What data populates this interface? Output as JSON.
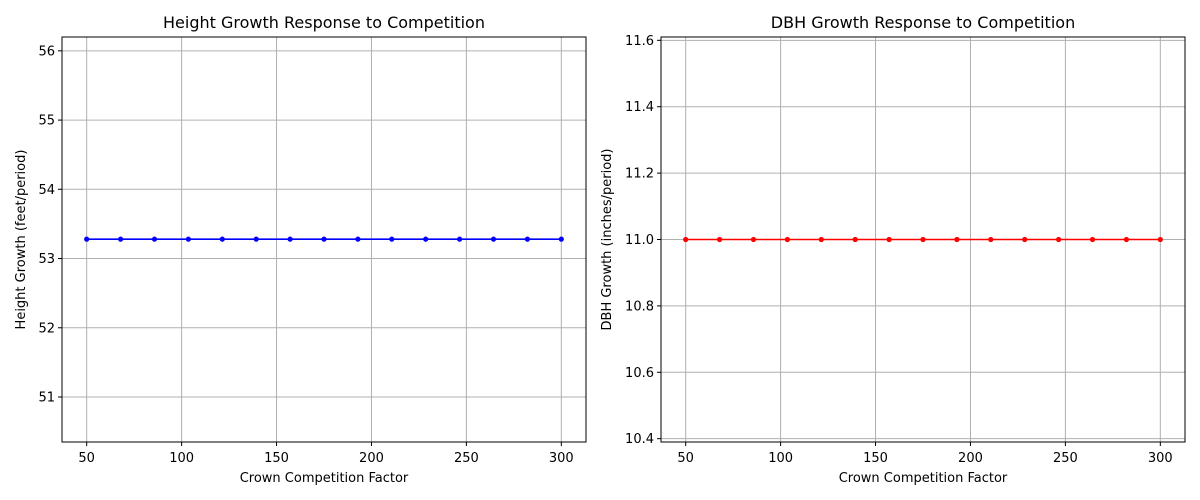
{
  "chart_data": [
    {
      "type": "line",
      "title": "Height Growth Response to Competition",
      "xlabel": "Crown Competition Factor",
      "ylabel": "Height Growth (feet/period)",
      "xlim": [
        37,
        313
      ],
      "ylim": [
        50.35,
        56.2
      ],
      "x_ticks": [
        50,
        100,
        150,
        200,
        250,
        300
      ],
      "y_ticks": [
        51,
        52,
        53,
        54,
        55,
        56
      ],
      "x_tick_labels": [
        "50",
        "100",
        "150",
        "200",
        "250",
        "300"
      ],
      "y_tick_labels": [
        "51",
        "52",
        "53",
        "54",
        "55",
        "56"
      ],
      "grid": true,
      "series": [
        {
          "color": "#0000ff",
          "marker": "circle",
          "x": [
            50,
            67.86,
            85.71,
            103.57,
            121.43,
            139.29,
            157.14,
            175,
            192.86,
            210.71,
            228.57,
            246.43,
            264.29,
            282.14,
            300
          ],
          "y": [
            53.28,
            53.28,
            53.28,
            53.28,
            53.28,
            53.28,
            53.28,
            53.28,
            53.28,
            53.28,
            53.28,
            53.28,
            53.28,
            53.28,
            53.28
          ]
        }
      ]
    },
    {
      "type": "line",
      "title": "DBH Growth Response to Competition",
      "xlabel": "Crown Competition Factor",
      "ylabel": "DBH Growth (inches/period)",
      "xlim": [
        37,
        313
      ],
      "ylim": [
        10.39,
        11.61
      ],
      "x_ticks": [
        50,
        100,
        150,
        200,
        250,
        300
      ],
      "y_ticks": [
        10.4,
        10.6,
        10.8,
        11.0,
        11.2,
        11.4,
        11.6
      ],
      "x_tick_labels": [
        "50",
        "100",
        "150",
        "200",
        "250",
        "300"
      ],
      "y_tick_labels": [
        "10.4",
        "10.6",
        "10.8",
        "11.0",
        "11.2",
        "11.4",
        "11.6"
      ],
      "grid": true,
      "series": [
        {
          "color": "#ff0000",
          "marker": "circle",
          "x": [
            50,
            67.86,
            85.71,
            103.57,
            121.43,
            139.29,
            157.14,
            175,
            192.86,
            210.71,
            228.57,
            246.43,
            264.29,
            282.14,
            300
          ],
          "y": [
            11.0,
            11.0,
            11.0,
            11.0,
            11.0,
            11.0,
            11.0,
            11.0,
            11.0,
            11.0,
            11.0,
            11.0,
            11.0,
            11.0,
            11.0
          ]
        }
      ]
    }
  ]
}
